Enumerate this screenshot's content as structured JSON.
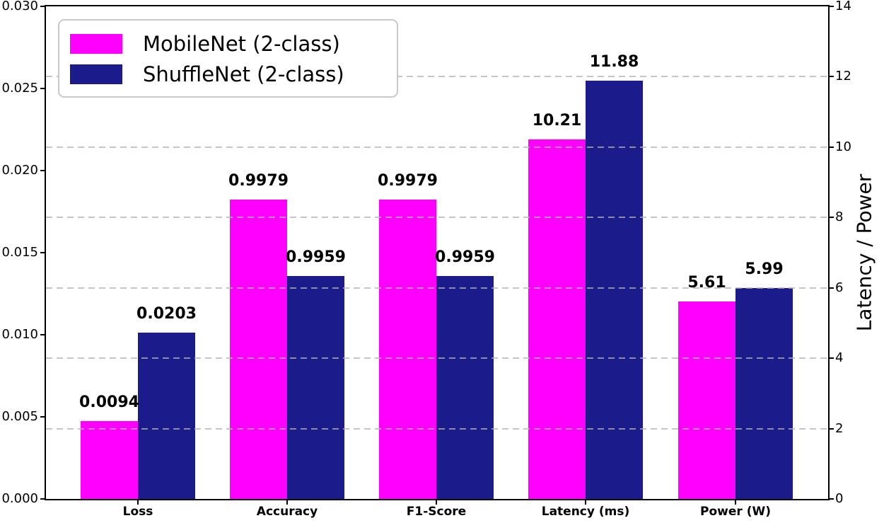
{
  "chart_data": {
    "type": "bar",
    "categories": [
      "Loss",
      "Accuracy",
      "F1-Score",
      "Latency (ms)",
      "Power (W)"
    ],
    "series": [
      {
        "name": "MobileNet (2-class)",
        "color": "#FF00FF",
        "values": [
          0.0094,
          0.9979,
          0.9979,
          10.21,
          5.61
        ],
        "value_labels": [
          "0.0094",
          "0.9979",
          "0.9979",
          "10.21",
          "5.61"
        ],
        "plotted_heights_right_axis_units": [
          2.21,
          8.51,
          8.51,
          10.21,
          5.61
        ]
      },
      {
        "name": "ShuffleNet (2-class)",
        "color": "#1B1B8C",
        "values": [
          0.0203,
          0.9959,
          0.9959,
          11.88,
          5.99
        ],
        "value_labels": [
          "0.0203",
          "0.9959",
          "0.9959",
          "11.88",
          "5.99"
        ],
        "plotted_heights_right_axis_units": [
          4.73,
          6.34,
          6.34,
          11.88,
          5.99
        ]
      }
    ],
    "left_axis": {
      "min": 0.0,
      "max": 0.03,
      "tick_labels": [
        "0.000",
        "0.005",
        "0.010",
        "0.015",
        "0.020",
        "0.025",
        "0.030"
      ]
    },
    "right_axis": {
      "label": "Latency / Power",
      "min": 0,
      "max": 14,
      "tick_labels": [
        "0",
        "2",
        "4",
        "6",
        "8",
        "10",
        "12",
        "14"
      ]
    },
    "grid": {
      "right_axis_values": [
        2,
        4,
        6,
        8,
        10,
        12
      ],
      "style": "dashed"
    },
    "legend": {
      "position": "upper left",
      "entries": [
        "MobileNet (2-class)",
        "ShuffleNet (2-class)"
      ]
    },
    "title": ""
  }
}
